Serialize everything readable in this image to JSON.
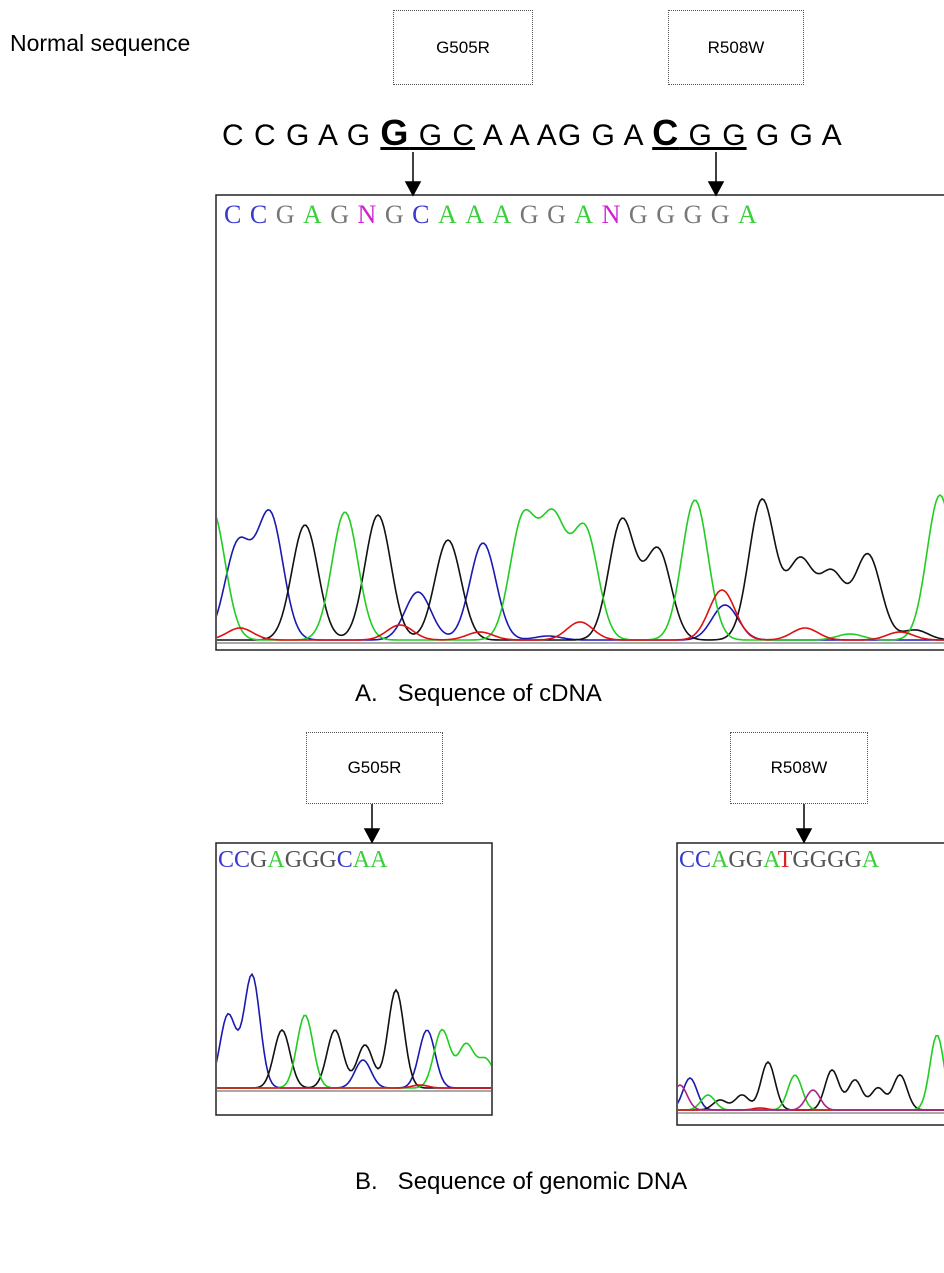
{
  "normal_label": "Normal sequence",
  "cdna_mutation_boxes": [
    "G505R",
    "R508W"
  ],
  "normal_sequence": [
    {
      "text": "C C G A G ",
      "style": "plain"
    },
    {
      "text": "G",
      "style": "bold-underline"
    },
    {
      "text": " G C",
      "style": "underline"
    },
    {
      "text": " A A AG G A ",
      "style": "plain"
    },
    {
      "text": "C",
      "style": "bold-underline"
    },
    {
      "text": " G G",
      "style": "underline"
    },
    {
      "text": " G G A",
      "style": "plain"
    }
  ],
  "cdna_calls": [
    {
      "base": "C",
      "color": "#3a3ad0"
    },
    {
      "base": "C",
      "color": "#3a3ad0"
    },
    {
      "base": "G",
      "color": "#777"
    },
    {
      "base": "A",
      "color": "#3ccf3c"
    },
    {
      "base": "G",
      "color": "#777"
    },
    {
      "base": "N",
      "color": "#d020d0"
    },
    {
      "base": "G",
      "color": "#777"
    },
    {
      "base": "C",
      "color": "#3a3ad0"
    },
    {
      "base": "A",
      "color": "#3ccf3c"
    },
    {
      "base": "A",
      "color": "#3ccf3c"
    },
    {
      "base": "A",
      "color": "#3ccf3c"
    },
    {
      "base": "G",
      "color": "#777"
    },
    {
      "base": "G",
      "color": "#777"
    },
    {
      "base": "A",
      "color": "#3ccf3c"
    },
    {
      "base": "N",
      "color": "#d020d0"
    },
    {
      "base": "G",
      "color": "#777"
    },
    {
      "base": "G",
      "color": "#777"
    },
    {
      "base": "G",
      "color": "#777"
    },
    {
      "base": "G",
      "color": "#777"
    },
    {
      "base": "A",
      "color": "#3ccf3c"
    }
  ],
  "caption_a": "A.   Sequence of cDNA",
  "genomic_mutation_boxes": [
    "G505R",
    "R508W"
  ],
  "genomic_calls_left": [
    {
      "base": "C",
      "color": "#3a3ad0"
    },
    {
      "base": "C",
      "color": "#3a3ad0"
    },
    {
      "base": "G",
      "color": "#555"
    },
    {
      "base": "A",
      "color": "#3ccf3c"
    },
    {
      "base": "G",
      "color": "#555"
    },
    {
      "base": "G",
      "color": "#555"
    },
    {
      "base": "G",
      "color": "#555"
    },
    {
      "base": "C",
      "color": "#3a3ad0"
    },
    {
      "base": "A",
      "color": "#3ccf3c"
    },
    {
      "base": "A",
      "color": "#3ccf3c"
    }
  ],
  "genomic_calls_right": [
    {
      "base": "C",
      "color": "#3a3ad0"
    },
    {
      "base": "C",
      "color": "#3a3ad0"
    },
    {
      "base": "A",
      "color": "#3ccf3c"
    },
    {
      "base": "G",
      "color": "#555"
    },
    {
      "base": "G",
      "color": "#555"
    },
    {
      "base": "A",
      "color": "#3ccf3c"
    },
    {
      "base": "T",
      "color": "#e02020"
    },
    {
      "base": "G",
      "color": "#555"
    },
    {
      "base": "G",
      "color": "#555"
    },
    {
      "base": "G",
      "color": "#555"
    },
    {
      "base": "G",
      "color": "#555"
    },
    {
      "base": "A",
      "color": "#3ccf3c"
    }
  ],
  "caption_b": "B.   Sequence of genomic DNA"
}
